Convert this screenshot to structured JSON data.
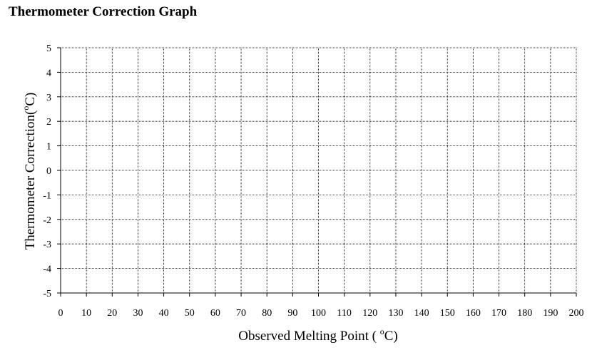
{
  "header": {
    "title": "Thermometer Correction Graph"
  },
  "chart_data": {
    "type": "line",
    "title": "Thermometer Correction Graph",
    "xlabel": {
      "before": "Observed Melting Point ( ",
      "sup": "o",
      "after": "C)"
    },
    "ylabel": {
      "before": "Thermometer Correction(",
      "sup": "o",
      "after": "C)"
    },
    "xlim": [
      0,
      200
    ],
    "ylim": [
      -5,
      5
    ],
    "x_ticks": [
      0,
      10,
      20,
      30,
      40,
      50,
      60,
      70,
      80,
      90,
      100,
      110,
      120,
      130,
      140,
      150,
      160,
      170,
      180,
      190,
      200
    ],
    "y_ticks": [
      5,
      4,
      3,
      2,
      1,
      0,
      -1,
      -2,
      -3,
      -4,
      -5
    ],
    "grid": true,
    "series": [],
    "colors": {
      "grid": "#000000",
      "axis": "#000000",
      "background": "#ffffff"
    }
  }
}
